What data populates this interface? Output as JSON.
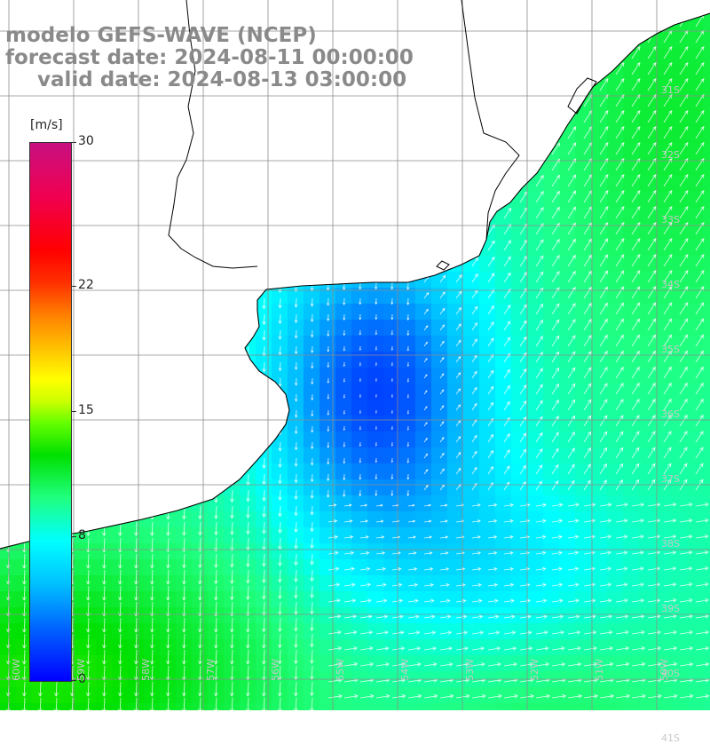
{
  "title": {
    "line1": "modelo GEFS-WAVE (NCEP)",
    "line2": "forecast date: 2024-08-11 00:00:00",
    "line3": "valid date: 2024-08-13 03:00:00"
  },
  "colorbar": {
    "unit": "[m/s]",
    "ticks": [
      "30",
      "22",
      "15",
      "8",
      "0"
    ],
    "tick_values": [
      30,
      22,
      15,
      8,
      0
    ]
  },
  "lat_labels": [
    "31S",
    "32S",
    "33S",
    "34S",
    "35S",
    "36S",
    "37S",
    "38S",
    "39S",
    "40S",
    "41S"
  ],
  "lon_labels": [
    "60W",
    "59W",
    "58W",
    "57W",
    "56W",
    "55W",
    "54W",
    "53W",
    "52W",
    "51W",
    "50W"
  ],
  "colors": {
    "land": "#ffffff",
    "grid": "#8c8c8c",
    "coast": "#000000",
    "arrow": "#ffffff"
  }
}
